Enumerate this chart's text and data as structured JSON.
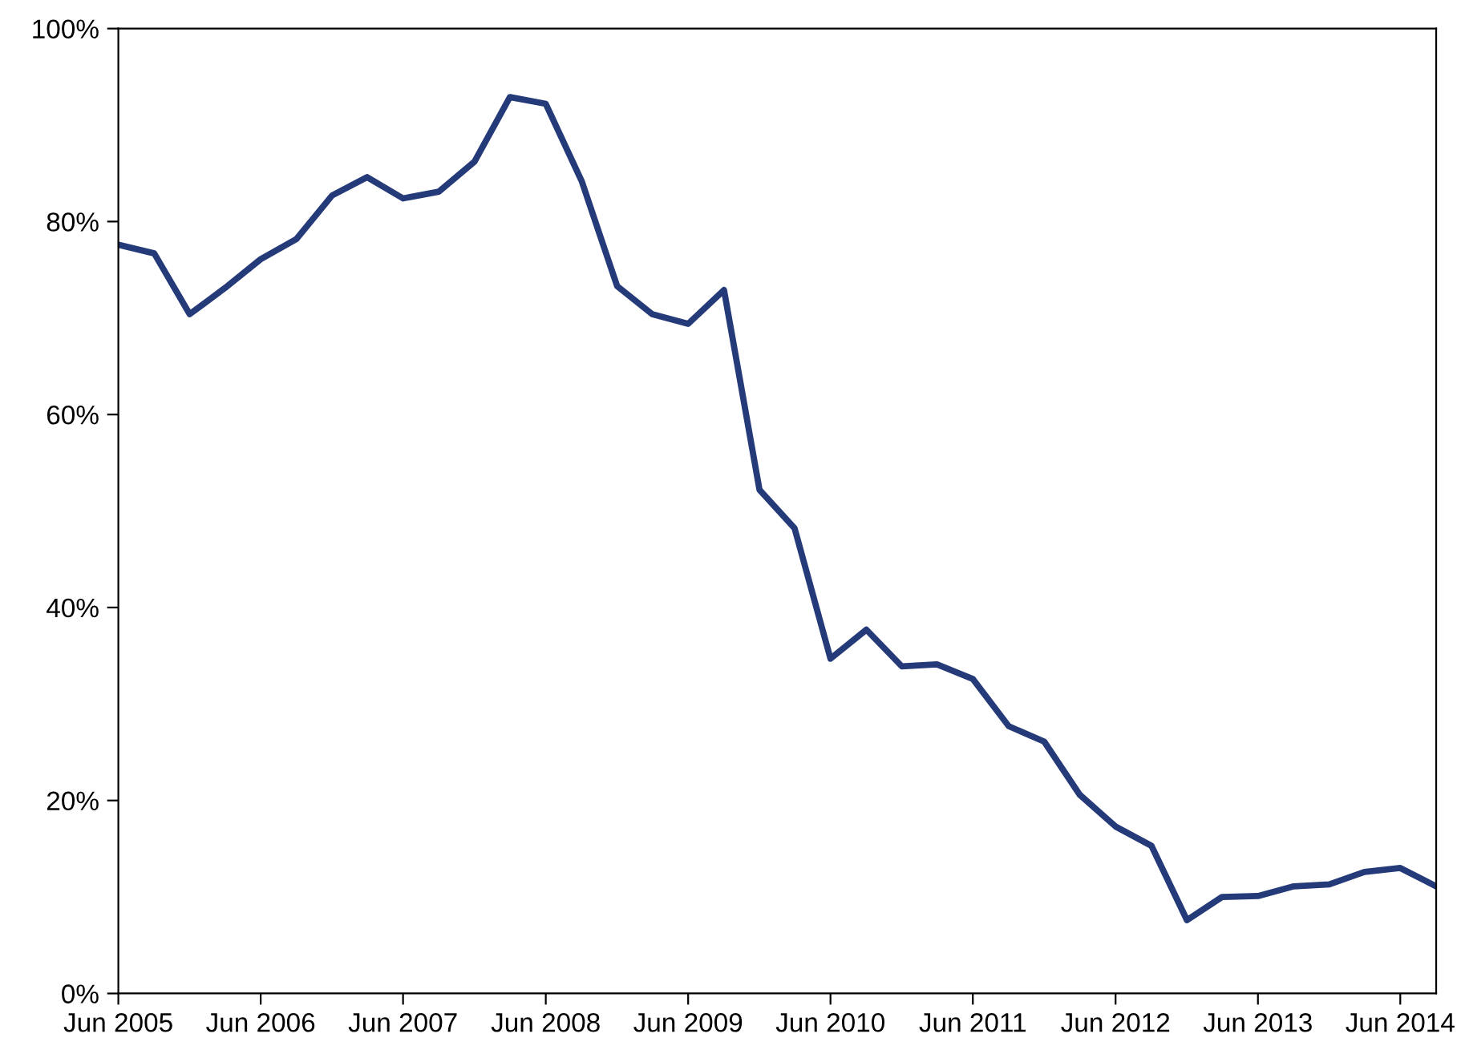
{
  "chart_data": {
    "type": "line",
    "x": [
      "2005-06",
      "2005-09",
      "2005-12",
      "2006-03",
      "2006-06",
      "2006-09",
      "2006-12",
      "2007-03",
      "2007-06",
      "2007-09",
      "2007-12",
      "2008-03",
      "2008-06",
      "2008-09",
      "2008-12",
      "2009-03",
      "2009-06",
      "2009-09",
      "2009-12",
      "2010-03",
      "2010-06",
      "2010-09",
      "2010-12",
      "2011-03",
      "2011-06",
      "2011-09",
      "2011-12",
      "2012-03",
      "2012-06",
      "2012-09",
      "2012-12",
      "2013-03",
      "2013-06",
      "2013-09",
      "2013-12",
      "2014-03",
      "2014-06",
      "2014-09"
    ],
    "series": [
      {
        "color": "#253a78",
        "values": [
          77.6,
          76.7,
          70.4,
          73.1,
          76.1,
          78.2,
          82.7,
          84.6,
          82.4,
          83.1,
          86.2,
          92.9,
          92.2,
          84.2,
          73.3,
          70.4,
          69.4,
          72.9,
          52.2,
          48.2,
          34.7,
          37.7,
          33.9,
          34.1,
          32.6,
          27.7,
          26.1,
          20.6,
          17.3,
          15.3,
          7.6,
          10.0,
          10.1,
          11.1,
          11.3,
          12.6,
          13.0,
          11.1
        ]
      }
    ],
    "xlim": [
      "2005-06",
      "2014-09"
    ],
    "xticks": [
      {
        "value": "2005-06",
        "label": "Jun 2005"
      },
      {
        "value": "2006-06",
        "label": "Jun 2006"
      },
      {
        "value": "2007-06",
        "label": "Jun 2007"
      },
      {
        "value": "2008-06",
        "label": "Jun 2008"
      },
      {
        "value": "2009-06",
        "label": "Jun 2009"
      },
      {
        "value": "2010-06",
        "label": "Jun 2010"
      },
      {
        "value": "2011-06",
        "label": "Jun 2011"
      },
      {
        "value": "2012-06",
        "label": "Jun 2012"
      },
      {
        "value": "2013-06",
        "label": "Jun 2013"
      },
      {
        "value": "2014-06",
        "label": "Jun 2014"
      }
    ],
    "ylim": [
      0,
      100
    ],
    "yticks": [
      {
        "value": 0,
        "label": "0%"
      },
      {
        "value": 20,
        "label": "20%"
      },
      {
        "value": 40,
        "label": "40%"
      },
      {
        "value": 60,
        "label": "60%"
      },
      {
        "value": 80,
        "label": "80%"
      },
      {
        "value": 100,
        "label": "100%"
      }
    ],
    "grid": false,
    "marker": "none",
    "line_style": "solid"
  }
}
